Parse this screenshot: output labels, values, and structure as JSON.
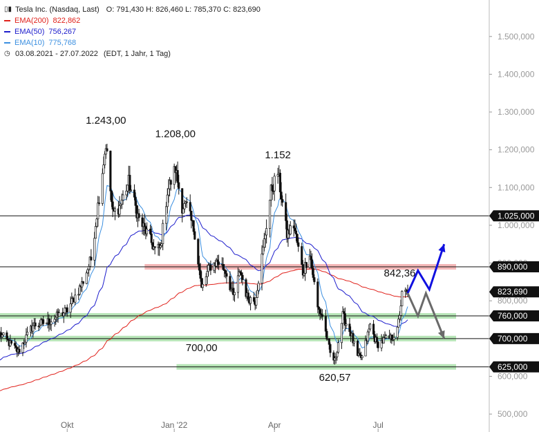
{
  "header": {
    "instrument": "Tesla Inc. (Nasdaq, Last)",
    "ohlc": "O: 791,430   H: 826,460   L: 785,370   C: 823,690",
    "ema200": {
      "label": "EMA(200)",
      "value": "822,862",
      "color": "#e0201a"
    },
    "ema50": {
      "label": "EMA(50)",
      "value": "756,267",
      "color": "#1c1ccc"
    },
    "ema10": {
      "label": "EMA(10)",
      "value": "775,768",
      "color": "#3b8fe0"
    },
    "range": "03.08.2021 - 27.07.2022",
    "range_note": "(EDT, 1 Jahr, 1 Tag)"
  },
  "chart_data": {
    "type": "candlestick",
    "ylim": [
      480,
      1560
    ],
    "y_ticks": [
      "500,000",
      "600,000",
      "700,000",
      "800,000",
      "900,000",
      "1.000,000",
      "1.100,000",
      "1.200,000",
      "1.300,000",
      "1.400,000",
      "1.500,000"
    ],
    "y_tick_values": [
      500,
      600,
      700,
      800,
      900,
      1000,
      1100,
      1200,
      1300,
      1400,
      1500
    ],
    "x_range": [
      "2021-08-03",
      "2022-07-27"
    ],
    "x_ticks": [
      {
        "label": "Okt",
        "date": "2021-10-01"
      },
      {
        "label": "Jan '22",
        "date": "2022-01-03"
      },
      {
        "label": "Apr",
        "date": "2022-04-01"
      },
      {
        "label": "Jul",
        "date": "2022-07-01"
      }
    ],
    "horizontal_lines": [
      {
        "value": 1025,
        "label": "1.025,000",
        "color": "#111111"
      },
      {
        "value": 890,
        "label": "890,000",
        "color": "#111111"
      },
      {
        "value": 760,
        "label": "760,000",
        "color": "#111111"
      },
      {
        "value": 700,
        "label": "700,000",
        "color": "#111111"
      },
      {
        "value": 625,
        "label": "625,000",
        "color": "#111111"
      }
    ],
    "last_price": {
      "value": 823.69,
      "label": "823,690"
    },
    "zones": [
      {
        "from": "2021-12-08",
        "to": "2022-07-27",
        "y": 890,
        "color": "#f0a0a0"
      },
      {
        "from": "2021-08-03",
        "to": "2022-07-27",
        "y": 760,
        "color": "#9fdc9f"
      },
      {
        "from": "2021-08-03",
        "to": "2022-07-27",
        "y": 700,
        "color": "#9fdc9f"
      },
      {
        "from": "2022-01-05",
        "to": "2022-07-27",
        "y": 625,
        "color": "#9fdc9f"
      }
    ],
    "annotations": [
      {
        "text": "1.243,00",
        "date": "2021-11-04",
        "value": 1243
      },
      {
        "text": "1.208,00",
        "date": "2022-01-04",
        "value": 1208
      },
      {
        "text": "1.152",
        "date": "2022-04-04",
        "value": 1152
      },
      {
        "text": "700,00",
        "date": "2022-01-27",
        "value": 700
      },
      {
        "text": "620,57",
        "date": "2022-05-24",
        "value": 620.57
      },
      {
        "text": "842,36",
        "date": "2022-07-20",
        "value": 842.36
      }
    ],
    "scenario_arrows": [
      {
        "color": "#1010e0",
        "points": [
          [
            "2022-07-27",
            820
          ],
          [
            "2022-08-05",
            880
          ],
          [
            "2022-08-15",
            830
          ],
          [
            "2022-08-28",
            950
          ]
        ]
      },
      {
        "color": "#6a6a6a",
        "points": [
          [
            "2022-07-27",
            820
          ],
          [
            "2022-08-05",
            760
          ],
          [
            "2022-08-12",
            820
          ],
          [
            "2022-08-28",
            700
          ]
        ]
      }
    ],
    "price_anchors": [
      [
        "2021-08-03",
        712
      ],
      [
        "2021-08-19",
        665
      ],
      [
        "2021-09-01",
        735
      ],
      [
        "2021-09-15",
        745
      ],
      [
        "2021-10-01",
        775
      ],
      [
        "2021-10-14",
        845
      ],
      [
        "2021-10-22",
        910
      ],
      [
        "2021-10-27",
        1030
      ],
      [
        "2021-11-04",
        1215
      ],
      [
        "2021-11-10",
        1030
      ],
      [
        "2021-11-16",
        1050
      ],
      [
        "2021-11-24",
        1115
      ],
      [
        "2021-12-03",
        1015
      ],
      [
        "2021-12-10",
        980
      ],
      [
        "2021-12-17",
        935
      ],
      [
        "2021-12-22",
        940
      ],
      [
        "2021-12-28",
        1090
      ],
      [
        "2022-01-04",
        1150
      ],
      [
        "2022-01-10",
        1050
      ],
      [
        "2022-01-14",
        1050
      ],
      [
        "2022-01-21",
        980
      ],
      [
        "2022-01-27",
        830
      ],
      [
        "2022-02-03",
        890
      ],
      [
        "2022-02-10",
        905
      ],
      [
        "2022-02-17",
        880
      ],
      [
        "2022-02-24",
        810
      ],
      [
        "2022-03-02",
        880
      ],
      [
        "2022-03-08",
        810
      ],
      [
        "2022-03-15",
        800
      ],
      [
        "2022-03-22",
        935
      ],
      [
        "2022-03-29",
        1090
      ],
      [
        "2022-04-04",
        1140
      ],
      [
        "2022-04-12",
        975
      ],
      [
        "2022-04-18",
        1000
      ],
      [
        "2022-04-26",
        875
      ],
      [
        "2022-05-02",
        930
      ],
      [
        "2022-05-09",
        780
      ],
      [
        "2022-05-13",
        760
      ],
      [
        "2022-05-20",
        660
      ],
      [
        "2022-05-24",
        640
      ],
      [
        "2022-05-31",
        760
      ],
      [
        "2022-06-07",
        715
      ],
      [
        "2022-06-13",
        650
      ],
      [
        "2022-06-17",
        650
      ],
      [
        "2022-06-24",
        735
      ],
      [
        "2022-06-30",
        685
      ],
      [
        "2022-07-06",
        695
      ],
      [
        "2022-07-12",
        700
      ],
      [
        "2022-07-18",
        720
      ],
      [
        "2022-07-22",
        815
      ],
      [
        "2022-07-27",
        823.69
      ]
    ]
  }
}
